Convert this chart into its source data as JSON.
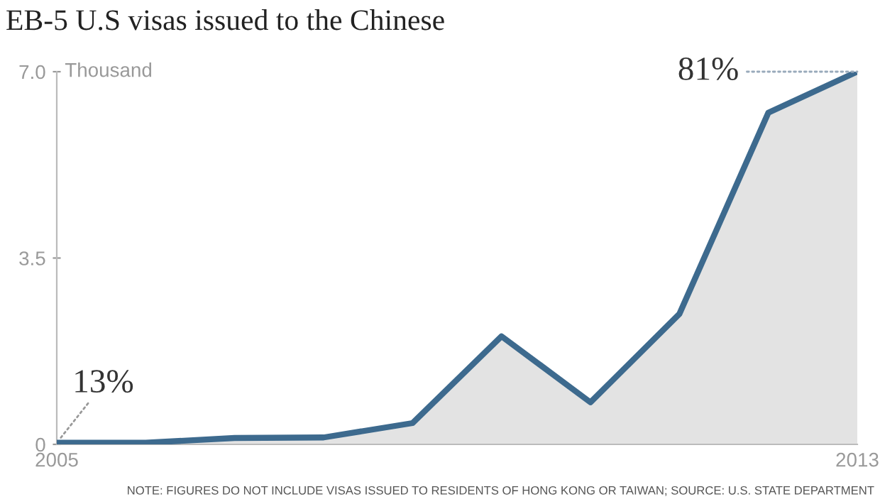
{
  "chart_data": {
    "type": "area",
    "title": "EB-5 U.S visas issued to the Chinese",
    "ylabel": "Thousand",
    "categories": [
      "2005",
      null,
      null,
      null,
      null,
      null,
      null,
      null,
      null,
      "2013"
    ],
    "series": [
      {
        "color": "#3d6a8e",
        "values": [
          0.03,
          0.03,
          0.12,
          0.13,
          0.4,
          2.03,
          0.79,
          2.45,
          6.23,
          7.0
        ]
      }
    ],
    "ylim": [
      0,
      7.0
    ],
    "yticks": [
      0,
      3.5,
      {
        "value": 7.0,
        "label": "7.0"
      }
    ],
    "grid": false,
    "legend": false,
    "annotations": [
      {
        "text": "13%",
        "x": "2005",
        "y": 0.03
      },
      {
        "text": "81%",
        "x": "2013",
        "y": 7.0
      },
      "NOTE: FIGURES DO NOT INCLUDE VISAS ISSUED TO RESIDENTS OF HONG KONG OR TAIWAN; SOURCE: U.S. STATE DEPARTMENT"
    ]
  }
}
